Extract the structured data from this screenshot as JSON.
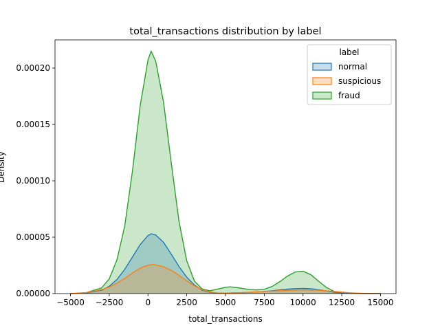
{
  "chart_data": {
    "type": "area",
    "title": "total_transactions distribution by label",
    "xlabel": "total_transactions",
    "ylabel": "Density",
    "xlim": [
      -6000,
      16000
    ],
    "ylim": [
      0,
      0.000225
    ],
    "x_ticks": [
      -5000,
      -2500,
      0,
      2500,
      5000,
      7500,
      10000,
      12500,
      15000
    ],
    "x_tick_labels": [
      "−5000",
      "−2500",
      "0",
      "2500",
      "5000",
      "7500",
      "10000",
      "12500",
      "15000"
    ],
    "y_ticks": [
      0,
      5e-05,
      0.0001,
      0.00015,
      0.0002
    ],
    "y_tick_labels": [
      "0.00000",
      "0.00005",
      "0.00010",
      "0.00015",
      "0.00020"
    ],
    "grid": false,
    "legend": {
      "title": "label",
      "placement": "top-right",
      "entries": [
        "normal",
        "suspicious",
        "fraud"
      ]
    },
    "colors": {
      "normal": "#1f77b4",
      "suspicious": "#ff7f0e",
      "fraud": "#2ca02c"
    },
    "series": [
      {
        "name": "fraud",
        "x": [
          -5000,
          -4000,
          -3000,
          -2500,
          -2000,
          -1500,
          -1000,
          -500,
          0,
          200,
          500,
          1000,
          1500,
          2000,
          2500,
          3000,
          3500,
          4000,
          4500,
          5000,
          5300,
          6000,
          6500,
          7000,
          7500,
          8000,
          8500,
          9000,
          9500,
          10000,
          10500,
          11000,
          11500,
          12000,
          12500,
          13000,
          14000,
          15000
        ],
        "values": [
          0,
          8e-07,
          5e-06,
          1.3e-05,
          3e-05,
          6e-05,
          0.000109,
          0.000167,
          0.000207,
          0.000215,
          0.000206,
          0.00017,
          0.000116,
          6.4e-05,
          2.9e-05,
          1.1e-05,
          4e-06,
          2.5e-06,
          4e-06,
          5.5e-06,
          6e-06,
          4.8e-06,
          3.6e-06,
          3.2e-06,
          3.8e-06,
          6.2e-06,
          1.05e-05,
          1.55e-05,
          1.92e-05,
          1.98e-05,
          1.68e-05,
          1.1e-05,
          5.5e-06,
          2e-06,
          6e-07,
          1.5e-07,
          0,
          0
        ]
      },
      {
        "name": "normal",
        "x": [
          -5000,
          -4000,
          -3000,
          -2500,
          -2000,
          -1500,
          -1000,
          -500,
          0,
          200,
          500,
          1000,
          1500,
          2000,
          2500,
          3000,
          3500,
          4000,
          4500,
          5000,
          6000,
          7000,
          7500,
          8000,
          8500,
          9000,
          9500,
          10000,
          10500,
          11000,
          11500,
          12000,
          13000,
          14000,
          15000
        ],
        "values": [
          0,
          5e-07,
          3e-06,
          6.5e-06,
          1.25e-05,
          2.15e-05,
          3.25e-05,
          4.35e-05,
          5.15e-05,
          5.3e-05,
          5.2e-05,
          4.55e-05,
          3.5e-05,
          2.4e-05,
          1.45e-05,
          7.5e-06,
          3e-06,
          1.2e-06,
          5e-07,
          4e-07,
          8e-07,
          1.4e-06,
          1.9e-06,
          2.5e-06,
          3.2e-06,
          3.9e-06,
          4.4e-06,
          4.6e-06,
          4.3e-06,
          3.5e-06,
          2.4e-06,
          1.2e-06,
          2e-07,
          0,
          0
        ]
      },
      {
        "name": "suspicious",
        "x": [
          -5000,
          -4000,
          -3000,
          -2500,
          -2000,
          -1500,
          -1000,
          -500,
          0,
          300,
          500,
          1000,
          1500,
          2000,
          2500,
          3000,
          3500,
          4000,
          4500,
          5000,
          6000,
          7000,
          8000,
          9000,
          10000,
          11000,
          12000,
          13000,
          14000,
          15000
        ],
        "values": [
          0,
          9e-07,
          3.5e-06,
          5.8e-06,
          9.2e-06,
          1.35e-05,
          1.82e-05,
          2.26e-05,
          2.52e-05,
          2.57e-05,
          2.55e-05,
          2.38e-05,
          2.06e-05,
          1.62e-05,
          1.12e-05,
          6.8e-06,
          3.5e-06,
          1.5e-06,
          6e-07,
          4e-07,
          8e-07,
          1.5e-06,
          2.2e-06,
          2.9e-06,
          3.3e-06,
          3e-06,
          1.9e-06,
          7e-07,
          1e-07,
          0
        ]
      }
    ]
  }
}
